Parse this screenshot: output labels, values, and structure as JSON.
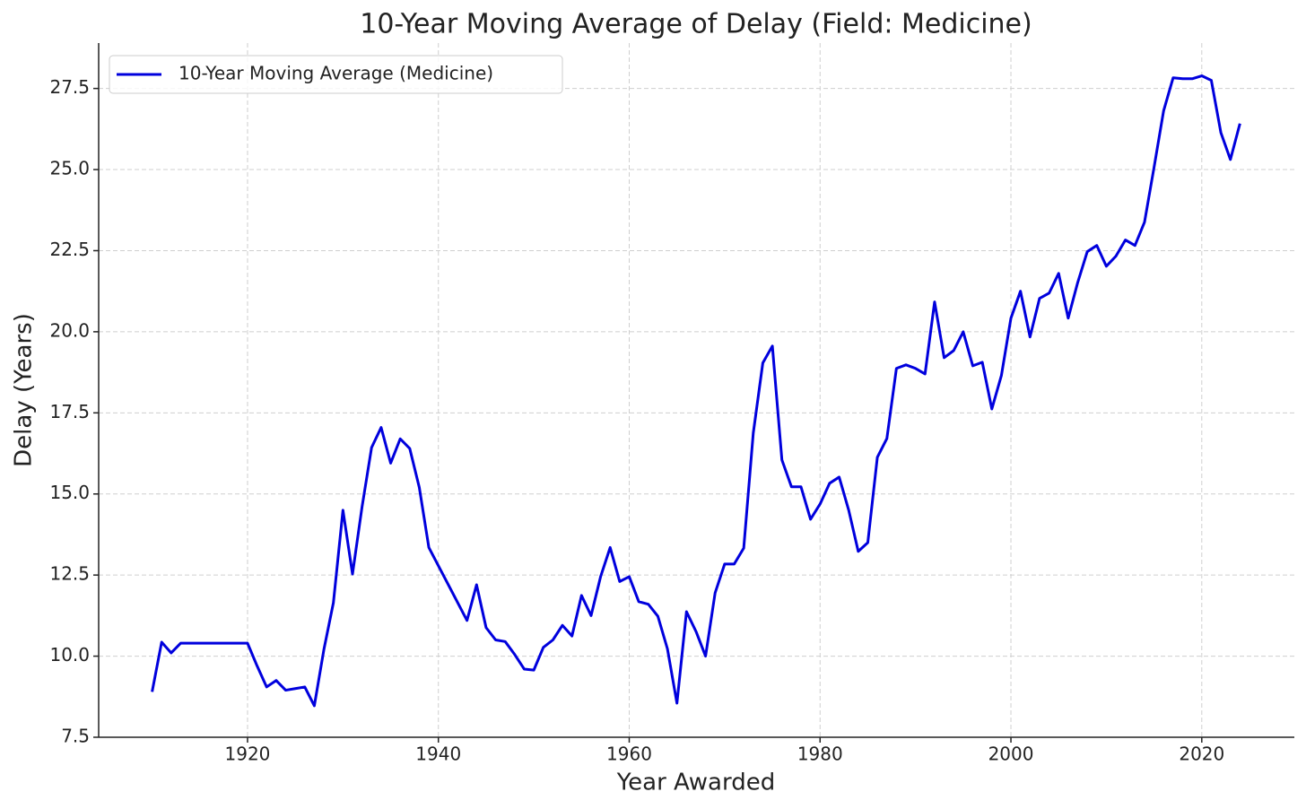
{
  "chart_data": {
    "type": "line",
    "title": "10-Year Moving Average of Delay (Field: Medicine)",
    "xlabel": "Year Awarded",
    "ylabel": "Delay (Years)",
    "x": [
      1910,
      1911,
      1912,
      1913,
      1914,
      1915,
      1916,
      1917,
      1918,
      1919,
      1920,
      1921,
      1922,
      1923,
      1924,
      1925,
      1926,
      1927,
      1928,
      1929,
      1930,
      1931,
      1932,
      1933,
      1934,
      1935,
      1936,
      1937,
      1938,
      1939,
      1943,
      1944,
      1945,
      1946,
      1947,
      1948,
      1949,
      1950,
      1951,
      1952,
      1953,
      1954,
      1955,
      1956,
      1957,
      1958,
      1959,
      1960,
      1961,
      1962,
      1963,
      1964,
      1965,
      1966,
      1967,
      1968,
      1969,
      1970,
      1971,
      1972,
      1973,
      1974,
      1975,
      1976,
      1977,
      1978,
      1979,
      1980,
      1981,
      1982,
      1983,
      1984,
      1985,
      1986,
      1987,
      1988,
      1989,
      1990,
      1991,
      1992,
      1993,
      1994,
      1995,
      1996,
      1997,
      1998,
      1999,
      2000,
      2001,
      2002,
      2003,
      2004,
      2005,
      2006,
      2007,
      2008,
      2009,
      2010,
      2011,
      2012,
      2013,
      2014,
      2015,
      2016,
      2017,
      2018,
      2019,
      2020,
      2021,
      2022,
      2023,
      2024
    ],
    "series": [
      {
        "name": "10-Year Moving Average (Medicine)",
        "color": "#0000dd",
        "values": [
          8.9,
          10.43,
          10.1,
          10.4,
          10.4,
          10.4,
          10.4,
          10.4,
          10.4,
          10.4,
          10.4,
          9.7,
          9.05,
          9.25,
          8.95,
          9.0,
          9.05,
          8.47,
          10.2,
          11.65,
          14.5,
          12.53,
          14.6,
          16.43,
          17.05,
          15.95,
          16.7,
          16.4,
          15.2,
          13.35,
          11.1,
          12.2,
          10.88,
          10.5,
          10.45,
          10.05,
          9.6,
          9.57,
          10.27,
          10.5,
          10.95,
          10.62,
          11.87,
          11.25,
          12.45,
          13.35,
          12.3,
          12.45,
          11.68,
          11.6,
          11.23,
          10.23,
          8.55,
          11.37,
          10.76,
          10.0,
          11.95,
          12.84,
          12.84,
          13.33,
          16.88,
          19.04,
          19.56,
          16.05,
          15.22,
          15.22,
          14.22,
          14.69,
          15.33,
          15.52,
          14.5,
          13.23,
          13.5,
          16.13,
          16.71,
          18.87,
          18.98,
          18.87,
          18.7,
          20.92,
          19.2,
          19.42,
          20.0,
          18.95,
          19.06,
          17.62,
          18.65,
          20.42,
          21.25,
          19.84,
          21.03,
          21.19,
          21.8,
          20.42,
          21.52,
          22.47,
          22.66,
          22.02,
          22.33,
          22.83,
          22.66,
          23.38,
          25.07,
          26.81,
          27.83,
          27.8,
          27.8,
          27.89,
          27.75,
          26.14,
          25.31,
          26.42
        ]
      }
    ],
    "xlim": [
      1904.4,
      2029.7
    ],
    "xticks": [
      1920,
      1940,
      1960,
      1980,
      2000,
      2020
    ],
    "ylim": [
      7.5,
      28.9
    ],
    "yticks": [
      7.5,
      {
        "value": 10,
        "label": "10.0"
      },
      12.5,
      {
        "value": 15,
        "label": "15.0"
      },
      17.5,
      {
        "value": 20,
        "label": "20.0"
      },
      22.5,
      {
        "value": 25,
        "label": "25.0"
      },
      27.5
    ],
    "grid": true,
    "legend": "upper-left"
  }
}
